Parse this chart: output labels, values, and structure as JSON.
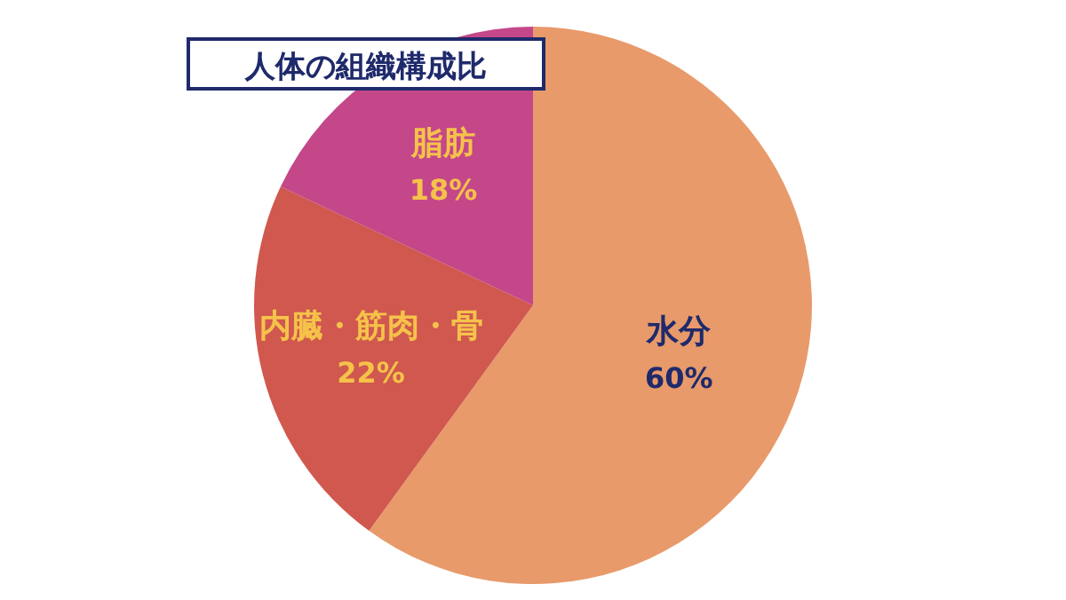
{
  "chart_data": {
    "type": "pie",
    "title": "人体の組織構成比",
    "categories": [
      "水分",
      "内臓・筋肉・骨",
      "脂肪"
    ],
    "values": [
      60,
      22,
      18
    ],
    "value_labels": [
      "60%",
      "22%",
      "18%"
    ],
    "colors": [
      "#e89a6a",
      "#d0584e",
      "#c4478a"
    ]
  }
}
